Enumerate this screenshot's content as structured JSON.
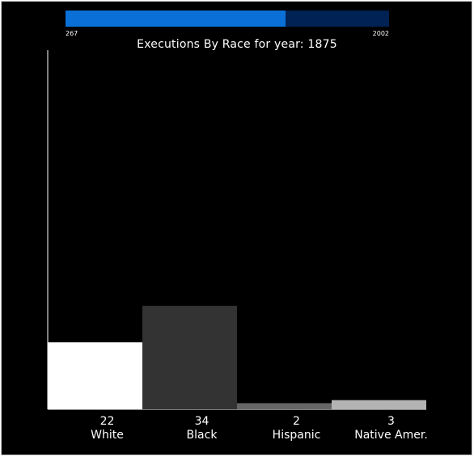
{
  "timeline": {
    "start_label": "267",
    "end_label": "2002",
    "progress": 0.68,
    "fill_color": "#0a70d8",
    "track_color": "#002255"
  },
  "chart_data": {
    "type": "bar",
    "title": "Executions By Race for year: 1875",
    "categories": [
      "White",
      "Black",
      "Hispanic",
      "Native Amer."
    ],
    "values": [
      22,
      34,
      2,
      3
    ],
    "colors": [
      "#ffffff",
      "#333333",
      "#666666",
      "#b3b3b3"
    ],
    "ylim": [
      0,
      118
    ],
    "xlabel": "",
    "ylabel": "",
    "grid": false,
    "legend": "none"
  }
}
